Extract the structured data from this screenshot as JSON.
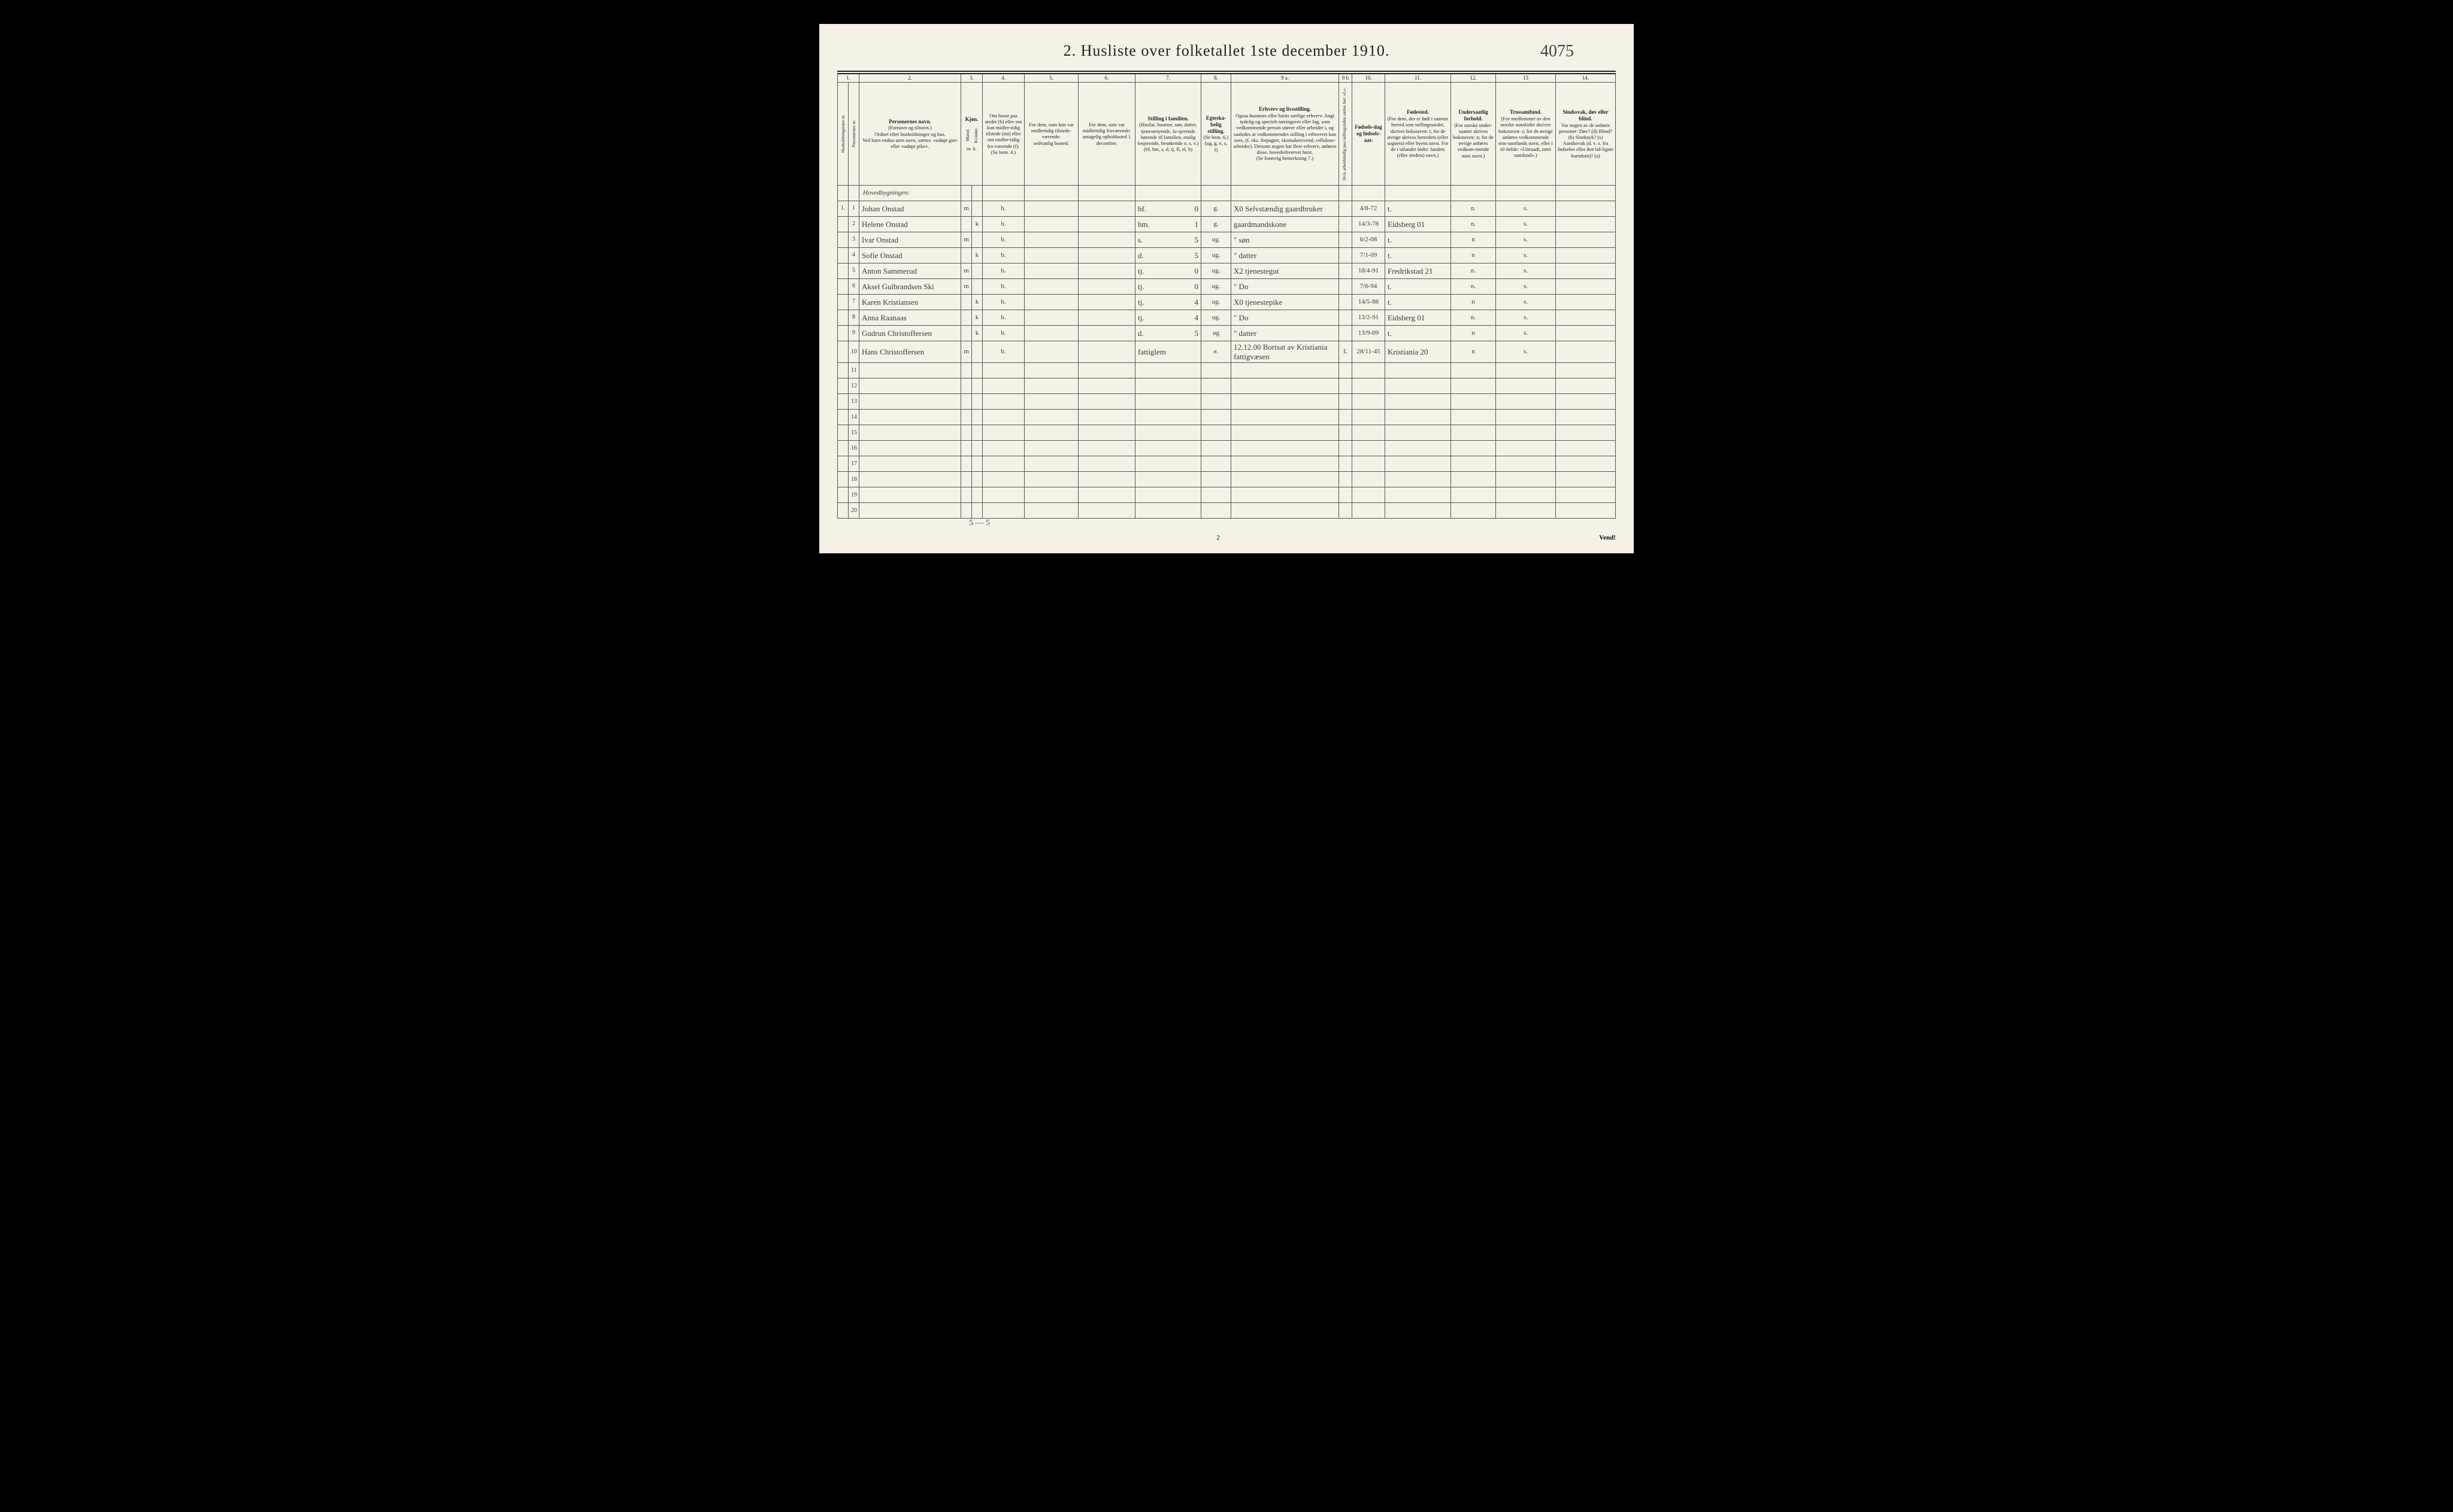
{
  "pageNumberHand": "4075",
  "title": "2.  Husliste over folketallet 1ste december 1910.",
  "colNumbers": [
    "1.",
    "",
    "2.",
    "3.",
    "",
    "4.",
    "5.",
    "6.",
    "7.",
    "8.",
    "9 a.",
    "9 b",
    "10.",
    "11.",
    "12.",
    "13",
    "14."
  ],
  "headers": {
    "c1a": "Husholdningernes nr.",
    "c1b": "Personernes nr.",
    "c2_title": "Personernes navn.",
    "c2_sub1": "(Fornavn og tilnavn.)",
    "c2_sub2": "Ordnet efter husholdninger og hus.",
    "c2_sub3": "Ved barn endnu uten navn, sættes: «udøpt gut» eller «udøpt pike».",
    "c3_title": "Kjøn.",
    "c3a": "Mænd.",
    "c3b": "Kvinder.",
    "c3_sub": "m. k.",
    "c4_title": "Om bosat paa stedet (b) eller om kun midler-tidig tilstede (mt) eller om midler-tidig fra-værende (f).",
    "c4_sub": "(Se bem. 4.)",
    "c5_title": "For dem, som kun var midlertidig tilstede-værende:",
    "c5_sub": "sedvanlig bosted.",
    "c6_title": "For dem, som var midlertidig fraværende:",
    "c6_sub": "antagelig opholdssted 1 december.",
    "c7_title": "Stilling i familien.",
    "c7_sub1": "(Husfar, husmor, søn, datter, tjenestetyende, lo-sjerende hørende til familien, enslig losjerende, besøkende o. s. v.)",
    "c7_sub2": "(hf, hm, s, d, tj, fl, el, b)",
    "c8_title": "Egteska-belig stilling.",
    "c8_sub1": "(Se bem. 6.)",
    "c8_sub2": "(ug, g, e, s, f)",
    "c9_title": "Erhverv og livsstilling.",
    "c9_sub": "Ogsaa husmors eller barns særlige erhverv. Angi tydelig og specielt næringsvei eller fag, som vedkommende person utøver eller arbeider i, og saaledes at vedkommendes stilling i erhvervet kan sees, (f. eks. forpagter, skomakersvend, cellulose-arbeider). Dersom nogen har flere erhverv, anføres disse, hovederhvervet først.",
    "c9_sub2": "(Se forøvrig bemerkning 7.)",
    "c9b": "Hvis arbeidsledig paa tællingstiden sættes her: «L».",
    "c10_title": "Fødsels-dag og fødsels-aar.",
    "c11_title": "Fødested.",
    "c11_sub": "(For dem, der er født i samme herred som tællingsstedet, skrives bokstaven: t; for de øvrige skrives herredets (eller sognets) eller byens navn. For de i utlandet fødte: landets (eller stedets) navn.)",
    "c12_title": "Undersaatlig forhold.",
    "c12_sub": "(For norske under-saatter skrives bokstaven: n; for de øvrige anføres vedkom-mende stats navn.)",
    "c13_title": "Trossamfund.",
    "c13_sub": "(For medlemmer av den norske statskirke skrives bokstaven: s; for de øvrige anføres vedkommende tros-samfunds navn, eller i til-fælde: «Uttraadt, intet samfund».)",
    "c14_title": "Sindssvak, døv eller blind.",
    "c14_sub": "Var nogen av de anførte personer: Døv? (d) Blind? (b) Sindssyk? (s) Aandssvak (d. v. s. fra fødselen eller den tid-ligste barndom)? (a)"
  },
  "sectionLabel": "Hovedbygningen:",
  "rows": [
    {
      "hh": "1.",
      "pn": "1",
      "name": "Johan Onstad",
      "sex": "m",
      "res": "b.",
      "fam": "hf.",
      "famx": "0",
      "mar": "g.",
      "occ": "X0  Selvstændig gaardbruker",
      "born": "4/8-72",
      "place": "t.",
      "nat": "n.",
      "rel": "s."
    },
    {
      "hh": "",
      "pn": "2",
      "name": "Helene Onstad",
      "sex": "k",
      "res": "b.",
      "fam": "hm.",
      "famx": "1",
      "mar": "g.",
      "occ": "gaardmandskone",
      "born": "14/3-78",
      "place": "Eidsberg  01",
      "nat": "n.",
      "rel": "s."
    },
    {
      "hh": "",
      "pn": "3",
      "name": "Ivar Onstad",
      "sex": "m",
      "res": "b.",
      "fam": "s.",
      "famx": "5",
      "mar": "ug.",
      "occ": "\"     søn",
      "born": "6/2-08",
      "place": "t.",
      "nat": "n",
      "rel": "s."
    },
    {
      "hh": "",
      "pn": "4",
      "name": "Sofie Onstad",
      "sex": "k",
      "res": "b.",
      "fam": "d.",
      "famx": "5",
      "mar": "ug.",
      "occ": "\"     datter",
      "born": "7/1-09",
      "place": "t.",
      "nat": "n",
      "rel": "s."
    },
    {
      "hh": "",
      "pn": "5",
      "name": "Anton Sammerud",
      "sex": "m",
      "res": "b.",
      "fam": "tj.",
      "famx": "0",
      "mar": "ug.",
      "occ": "X2  tjenestegut",
      "born": "18/4-91",
      "place": "Fredrikstad 21",
      "nat": "n.",
      "rel": "s."
    },
    {
      "hh": "",
      "pn": "6",
      "name": "Aksel Gulbrandsen Ski",
      "sex": "m",
      "res": "b.",
      "fam": "tj.",
      "famx": "0",
      "mar": "ug.",
      "occ": "\"     Do",
      "born": "7/6-94",
      "place": "t.",
      "nat": "n.",
      "rel": "s."
    },
    {
      "hh": "",
      "pn": "7",
      "name": "Karen Kristiansen",
      "sex": "k",
      "res": "b.",
      "fam": "tj.",
      "famx": "4",
      "mar": "ug.",
      "occ": "X0  tjenestepike",
      "born": "14/5-88",
      "place": "t.",
      "nat": "n",
      "rel": "s."
    },
    {
      "hh": "",
      "pn": "8",
      "name": "Anna Raanaas",
      "sex": "k",
      "res": "b.",
      "fam": "tj.",
      "famx": "4",
      "mar": "ug.",
      "occ": "\"     Do",
      "born": "13/2-91",
      "place": "Eidsberg  01",
      "nat": "n.",
      "rel": "s."
    },
    {
      "hh": "",
      "pn": "9",
      "name": "Gudrun Christoffersen",
      "sex": "k",
      "res": "b.",
      "fam": "d.",
      "famx": "5",
      "mar": "ug",
      "occ": "\"     datter",
      "born": "13/9-09",
      "place": "t.",
      "nat": "n",
      "rel": "s."
    },
    {
      "hh": "",
      "pn": "10",
      "name": "Hans Christoffersen",
      "sex": "m",
      "res": "b.",
      "fam": "fattiglem",
      "famx": "",
      "mar": "e.",
      "occ": "12.12.00  Bortsat av Kristiania fattigvæsen",
      "col9b": "L",
      "born": "28/11-45",
      "place": "Kristiania 20",
      "nat": "n",
      "rel": "s."
    }
  ],
  "emptyRows": [
    "11",
    "12",
    "13",
    "14",
    "15",
    "16",
    "17",
    "18",
    "19",
    "20"
  ],
  "handTally": "5 — 5",
  "footerCenter": "2",
  "footerRight": "Vend!"
}
